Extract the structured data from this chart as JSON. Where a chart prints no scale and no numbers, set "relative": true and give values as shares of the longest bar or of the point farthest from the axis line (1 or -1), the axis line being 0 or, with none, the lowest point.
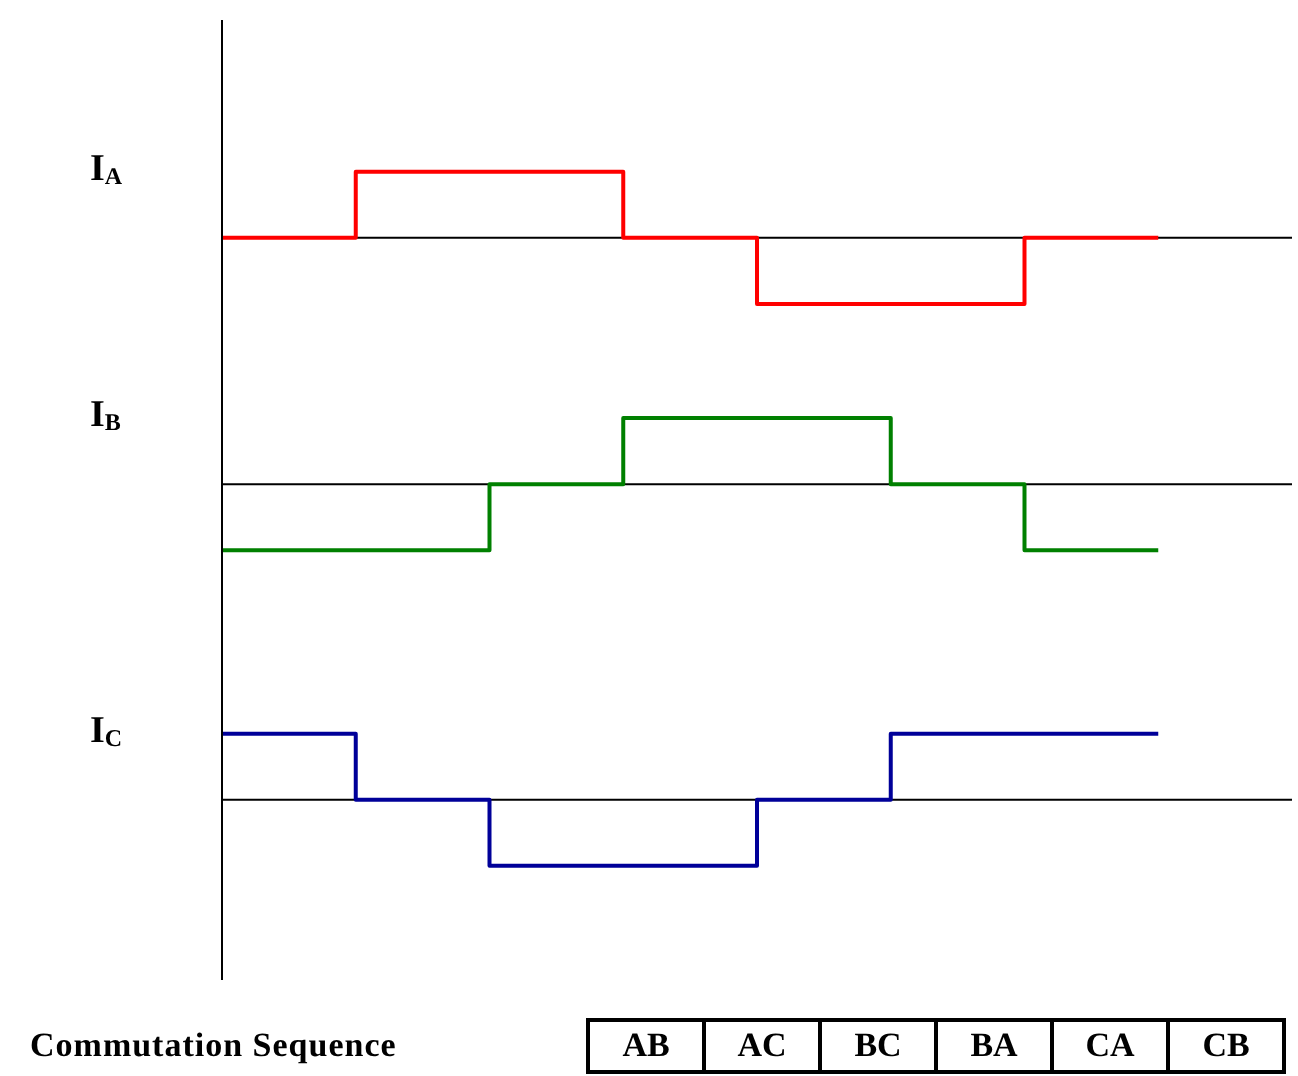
{
  "chart_data": [
    {
      "type": "step",
      "relative": true,
      "categories": [
        null,
        null,
        null,
        null,
        null,
        null,
        null,
        null
      ],
      "series": [
        {
          "name": "I$_{A}$",
          "color": "#ff0000",
          "values": [
            0,
            1,
            1,
            0,
            -1,
            -1,
            0,
            0
          ]
        }
      ]
    },
    {
      "type": "step",
      "relative": true,
      "categories": [
        null,
        null,
        null,
        null,
        null,
        null,
        null,
        null
      ],
      "series": [
        {
          "name": "I$_{B}$",
          "color": "#008000",
          "values": [
            -1,
            -1,
            0,
            1,
            1,
            0,
            -1,
            -1
          ]
        }
      ]
    },
    {
      "type": "step",
      "relative": true,
      "categories": [
        null,
        null,
        null,
        null,
        null,
        null,
        null,
        null
      ],
      "series": [
        {
          "name": "I$_{C}$",
          "color": "#000099",
          "values": [
            1,
            0,
            -1,
            -1,
            0,
            1,
            1,
            1
          ]
        }
      ],
      "annotations": [
        "Commutation Sequence",
        "AB",
        "AC",
        "BC",
        "BA",
        "CA",
        "CB"
      ]
    }
  ]
}
